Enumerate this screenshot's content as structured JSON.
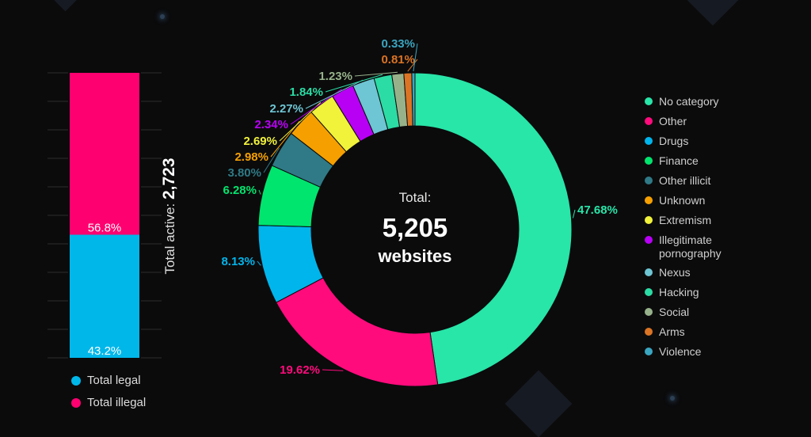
{
  "bar_chart": {
    "type": "bar",
    "stacked": true,
    "title_prefix": "Total active:",
    "total": "2,723",
    "ylim": [
      0,
      100
    ],
    "series": [
      {
        "name": "Total legal",
        "value": 43.2,
        "label": "43.2%",
        "color": "#00b7ea"
      },
      {
        "name": "Total illegal",
        "value": 56.8,
        "label": "56.8%",
        "color": "#ff0070"
      }
    ]
  },
  "chart_data": {
    "type": "pie",
    "donut": true,
    "center_title": "Total:",
    "center_value": "5,205",
    "center_unit": "websites",
    "legend_position": "right",
    "slices": [
      {
        "name": "No category",
        "value": 47.68,
        "label": "47.68%",
        "color": "#28e5a8"
      },
      {
        "name": "Other",
        "value": 19.62,
        "label": "19.62%",
        "color": "#ff0b7c"
      },
      {
        "name": "Drugs",
        "value": 8.13,
        "label": "8.13%",
        "color": "#00b5eb"
      },
      {
        "name": "Finance",
        "value": 6.28,
        "label": "6.28%",
        "color": "#00e56e"
      },
      {
        "name": "Other illicit",
        "value": 3.8,
        "label": "3.80%",
        "color": "#2f7a86"
      },
      {
        "name": "Unknown",
        "value": 2.98,
        "label": "2.98%",
        "color": "#f5a000"
      },
      {
        "name": "Extremism",
        "value": 2.69,
        "label": "2.69%",
        "color": "#f1f23a"
      },
      {
        "name": "Illegitimate pornography",
        "value": 2.34,
        "label": "2.34%",
        "color": "#b800f5"
      },
      {
        "name": "Nexus",
        "value": 2.27,
        "label": "2.27%",
        "color": "#6ec5d3"
      },
      {
        "name": "Hacking",
        "value": 1.84,
        "label": "1.84%",
        "color": "#2bdca4"
      },
      {
        "name": "Social",
        "value": 1.23,
        "label": "1.23%",
        "color": "#97b28a"
      },
      {
        "name": "Arms",
        "value": 0.81,
        "label": "0.81%",
        "color": "#db7424"
      },
      {
        "name": "Violence",
        "value": 0.33,
        "label": "0.33%",
        "color": "#3aa6c1"
      }
    ]
  }
}
